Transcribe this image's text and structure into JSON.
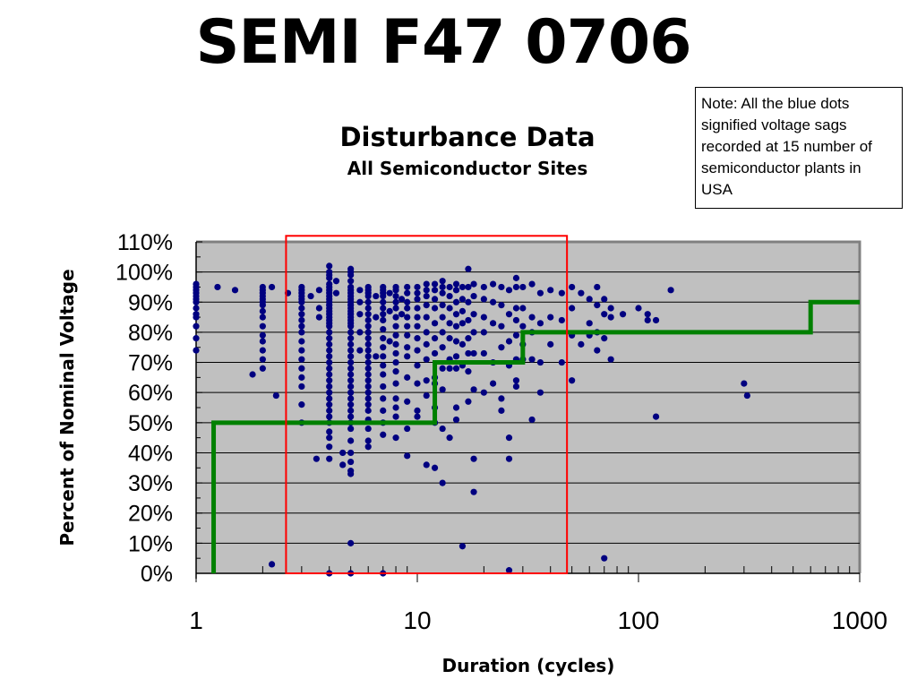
{
  "slide": {
    "title": "SEMI F47 0706",
    "note": "Note: All the blue dots signified voltage sags recorded at 15 number of semiconductor plants in USA"
  },
  "chart_data": {
    "type": "scatter",
    "title": "Disturbance Data",
    "subtitle": "All Semiconductor Sites",
    "xlabel": "Duration (cycles)",
    "ylabel": "Percent of Nominal Voltage",
    "x_scale": "log",
    "xlim": [
      1,
      1000
    ],
    "ylim": [
      0,
      110
    ],
    "x_ticks": [
      "1",
      "10",
      "100",
      "1000"
    ],
    "y_ticks": [
      "0%",
      "10%",
      "20%",
      "30%",
      "40%",
      "50%",
      "60%",
      "70%",
      "80%",
      "90%",
      "100%",
      "110%"
    ],
    "grid": "horizontal",
    "colors": {
      "points": "#000080",
      "curve": "#008000",
      "highlight": "#ff0000",
      "plot_bg": "#c0c0c0"
    },
    "points_by_x": [
      {
        "x": 1,
        "y": [
          96,
          95,
          94,
          93,
          92,
          91,
          90,
          88,
          86,
          85,
          82,
          78,
          74
        ]
      },
      {
        "x": 1.25,
        "y": [
          95
        ]
      },
      {
        "x": 1.5,
        "y": [
          94
        ]
      },
      {
        "x": 1.8,
        "y": [
          66
        ]
      },
      {
        "x": 2,
        "y": [
          95,
          94,
          93,
          92,
          91,
          90,
          89,
          87,
          85,
          82,
          79,
          77,
          74,
          71,
          68
        ]
      },
      {
        "x": 2.2,
        "y": [
          95,
          3
        ]
      },
      {
        "x": 2.3,
        "y": [
          59
        ]
      },
      {
        "x": 2.6,
        "y": [
          93
        ]
      },
      {
        "x": 3,
        "y": [
          95,
          94,
          93,
          92,
          91,
          90,
          88,
          86,
          84,
          82,
          80,
          77,
          74,
          71,
          68,
          65,
          62,
          56,
          50
        ]
      },
      {
        "x": 3.3,
        "y": [
          92
        ]
      },
      {
        "x": 3.5,
        "y": [
          38
        ]
      },
      {
        "x": 3.6,
        "y": [
          94,
          88,
          85
        ]
      },
      {
        "x": 4,
        "y": [
          102,
          100,
          99,
          98,
          96,
          95,
          94,
          93,
          92,
          91,
          90,
          89,
          88,
          87,
          86,
          85,
          84,
          83,
          82,
          80,
          78,
          76,
          74,
          72,
          70,
          68,
          66,
          64,
          62,
          60,
          58,
          56,
          54,
          52,
          50,
          47,
          45,
          42,
          38,
          0
        ]
      },
      {
        "x": 4.3,
        "y": [
          97,
          93
        ]
      },
      {
        "x": 4.6,
        "y": [
          40,
          36
        ]
      },
      {
        "x": 5,
        "y": [
          101,
          100,
          99,
          97,
          95,
          94,
          93,
          92,
          91,
          90,
          89,
          88,
          87,
          86,
          85,
          84,
          83,
          82,
          80,
          78,
          76,
          74,
          72,
          70,
          68,
          66,
          64,
          62,
          60,
          58,
          56,
          54,
          52,
          50,
          48,
          44,
          40,
          37,
          34,
          33,
          10,
          0
        ]
      },
      {
        "x": 5.5,
        "y": [
          94,
          90,
          86,
          80,
          74
        ]
      },
      {
        "x": 6,
        "y": [
          95,
          94,
          93,
          92,
          90,
          88,
          86,
          84,
          82,
          80,
          78,
          76,
          74,
          72,
          70,
          68,
          66,
          64,
          62,
          60,
          58,
          56,
          54,
          51,
          48,
          44,
          42
        ]
      },
      {
        "x": 6.5,
        "y": [
          92,
          85,
          72
        ]
      },
      {
        "x": 7,
        "y": [
          95,
          94,
          93,
          92,
          90,
          88,
          86,
          84,
          81,
          78,
          75,
          72,
          69,
          66,
          62,
          58,
          54,
          50,
          46,
          0
        ]
      },
      {
        "x": 7.5,
        "y": [
          93,
          87,
          77
        ]
      },
      {
        "x": 8,
        "y": [
          95,
          94,
          92,
          90,
          88,
          85,
          82,
          79,
          76,
          73,
          70,
          67,
          63,
          58,
          55,
          52,
          45
        ]
      },
      {
        "x": 8.5,
        "y": [
          91,
          86
        ]
      },
      {
        "x": 9,
        "y": [
          95,
          93,
          90,
          88,
          85,
          82,
          79,
          75,
          72,
          65,
          57,
          48,
          39
        ]
      },
      {
        "x": 10,
        "y": [
          95,
          93,
          91,
          88,
          85,
          82,
          78,
          74,
          69,
          63,
          54,
          52
        ]
      },
      {
        "x": 11,
        "y": [
          96,
          94,
          92,
          89,
          85,
          80,
          76,
          71,
          64,
          59,
          36
        ]
      },
      {
        "x": 12,
        "y": [
          96,
          94,
          91,
          88,
          83,
          78,
          73,
          65,
          63,
          55,
          50,
          35
        ]
      },
      {
        "x": 13,
        "y": [
          97,
          95,
          93,
          89,
          85,
          80,
          75,
          68,
          61,
          48,
          30
        ]
      },
      {
        "x": 14,
        "y": [
          95,
          92,
          88,
          83,
          78,
          71,
          68,
          45
        ]
      },
      {
        "x": 15,
        "y": [
          96,
          94,
          90,
          86,
          82,
          77,
          72,
          68,
          55,
          51
        ]
      },
      {
        "x": 16,
        "y": [
          95,
          91,
          87,
          83,
          76,
          69,
          9
        ]
      },
      {
        "x": 17,
        "y": [
          101,
          95,
          90,
          84,
          78,
          73,
          67,
          57
        ]
      },
      {
        "x": 18,
        "y": [
          96,
          92,
          86,
          80,
          73,
          61,
          38,
          27
        ]
      },
      {
        "x": 20,
        "y": [
          95,
          91,
          85,
          80,
          73,
          60
        ]
      },
      {
        "x": 22,
        "y": [
          96,
          90,
          83,
          70,
          63
        ]
      },
      {
        "x": 24,
        "y": [
          95,
          89,
          82,
          75,
          58,
          54
        ]
      },
      {
        "x": 26,
        "y": [
          94,
          86,
          77,
          69,
          45,
          38,
          1
        ]
      },
      {
        "x": 28,
        "y": [
          98,
          95,
          88,
          84,
          79,
          71,
          64,
          62
        ]
      },
      {
        "x": 30,
        "y": [
          95,
          88,
          82,
          76,
          71
        ]
      },
      {
        "x": 33,
        "y": [
          96,
          85,
          80,
          71,
          51
        ]
      },
      {
        "x": 36,
        "y": [
          93,
          83,
          70,
          60
        ]
      },
      {
        "x": 40,
        "y": [
          94,
          85,
          76
        ]
      },
      {
        "x": 45,
        "y": [
          93,
          84,
          70
        ]
      },
      {
        "x": 50,
        "y": [
          95,
          88,
          79,
          64
        ]
      },
      {
        "x": 55,
        "y": [
          93,
          76
        ]
      },
      {
        "x": 60,
        "y": [
          91,
          83,
          79
        ]
      },
      {
        "x": 65,
        "y": [
          95,
          89,
          80,
          74
        ]
      },
      {
        "x": 70,
        "y": [
          91,
          86,
          78,
          5
        ]
      },
      {
        "x": 75,
        "y": [
          88,
          85,
          71
        ]
      },
      {
        "x": 85,
        "y": [
          86
        ]
      },
      {
        "x": 100,
        "y": [
          88
        ]
      },
      {
        "x": 110,
        "y": [
          84,
          86
        ]
      },
      {
        "x": 120,
        "y": [
          84,
          52
        ]
      },
      {
        "x": 140,
        "y": [
          94
        ]
      },
      {
        "x": 300,
        "y": [
          63
        ]
      },
      {
        "x": 310,
        "y": [
          59
        ]
      }
    ],
    "curve": [
      [
        1.2,
        0
      ],
      [
        1.2,
        50
      ],
      [
        12,
        50
      ],
      [
        12,
        70
      ],
      [
        30,
        70
      ],
      [
        30,
        80
      ],
      [
        600,
        80
      ],
      [
        600,
        90
      ],
      [
        1000,
        90
      ]
    ],
    "highlight_box": {
      "x": [
        2.55,
        47.5
      ],
      "y": [
        0,
        112
      ]
    }
  }
}
